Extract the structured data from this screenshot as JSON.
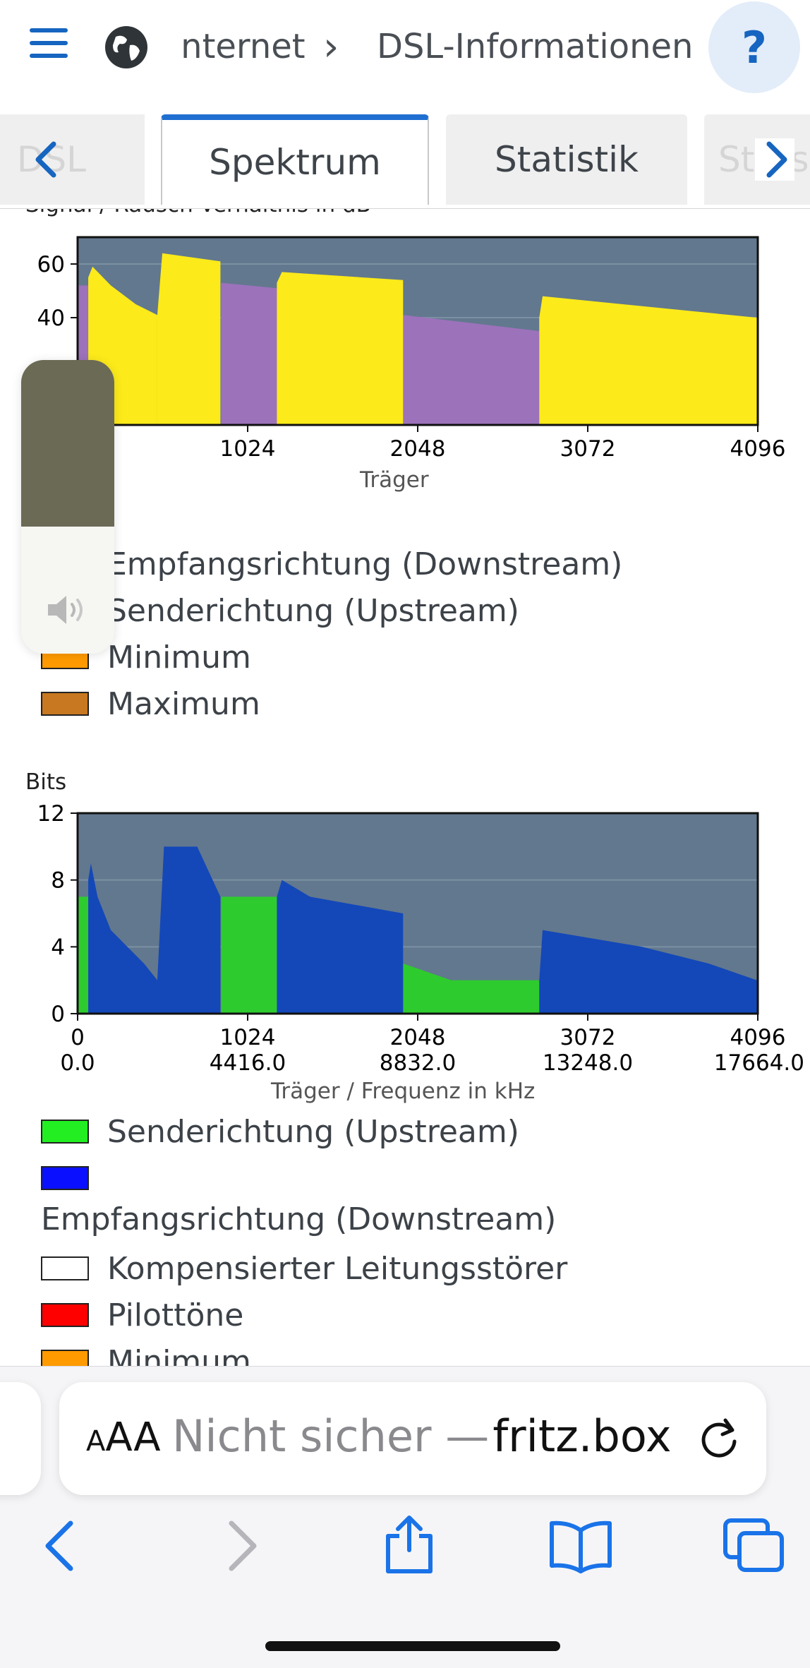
{
  "header": {
    "breadcrumb_parent": "Internet",
    "breadcrumb_separator": "›",
    "breadcrumb_current": "DSL-Informationen",
    "help_label": "?"
  },
  "tabs": {
    "items": [
      "DSL",
      "Spektrum",
      "Statistik",
      "Störsicherheit"
    ],
    "active": "Spektrum"
  },
  "chart1": {
    "title": "Signal / Rausch-Verhältnis in dB",
    "xlabel": "Träger"
  },
  "legend1": [
    {
      "label": "Empfangsrichtung (Downstream)",
      "color": "#ffee00"
    },
    {
      "label": "Senderichtung (Upstream)",
      "color": "#a070c0"
    },
    {
      "label": "Minimum",
      "color": "#ff9a00"
    },
    {
      "label": "Maximum",
      "color": "#c87820"
    }
  ],
  "chart2": {
    "title": "Bits",
    "xlabel": "Träger / Frequenz in kHz",
    "freq_ticks": [
      "0.0",
      "4416.0",
      "8832.0",
      "13248.0",
      "17664.0"
    ]
  },
  "legend2": [
    {
      "label": "Senderichtung (Upstream)",
      "color": "#22ee22"
    },
    {
      "label": "",
      "color": "#0a10ff"
    },
    {
      "label": "Empfangsrichtung (Downstream)",
      "color": ""
    },
    {
      "label": "Kompensierter Leitungsstörer",
      "color": "#ffffff"
    },
    {
      "label": "Pilottöne",
      "color": "#ff0000"
    },
    {
      "label": "Minimum",
      "color": "#ff9a00"
    }
  ],
  "safari": {
    "text_size_label": "AA",
    "not_secure_label": "Nicht sicher —",
    "domain": "fritz.box"
  },
  "chart_data": [
    {
      "type": "area",
      "title": "Signal / Rausch-Verhältnis in dB",
      "xlabel": "Träger",
      "ylabel": "",
      "xlim": [
        0,
        4096
      ],
      "ylim": [
        0,
        70
      ],
      "xticks": [
        1024,
        2048,
        3072,
        4096
      ],
      "yticks": [
        40,
        60
      ],
      "grid": true,
      "series": [
        {
          "name": "Senderichtung (Upstream)",
          "color": "#9c72bb",
          "segments": [
            {
              "x": [
                0,
                64
              ],
              "y": [
                52,
                52
              ]
            },
            {
              "x": [
                864,
                1200
              ],
              "y": [
                53,
                51
              ]
            },
            {
              "x": [
                1960,
                2780
              ],
              "y": [
                41,
                35
              ]
            }
          ]
        },
        {
          "name": "Empfangsrichtung (Downstream)",
          "color": "#fcea1a",
          "segments": [
            {
              "x": [
                64,
                90,
                200,
                350,
                480
              ],
              "y": [
                55,
                59,
                52,
                45,
                41
              ]
            },
            {
              "x": [
                480,
                510,
                860
              ],
              "y": [
                41,
                64,
                61
              ]
            },
            {
              "x": [
                1200,
                1230,
                1960
              ],
              "y": [
                53,
                57,
                54
              ]
            },
            {
              "x": [
                2780,
                2800,
                4090
              ],
              "y": [
                40,
                48,
                40
              ]
            }
          ]
        }
      ]
    },
    {
      "type": "area",
      "title": "Bits",
      "xlabel": "Träger / Frequenz in kHz",
      "ylabel": "",
      "xlim": [
        0,
        4096
      ],
      "ylim": [
        0,
        12
      ],
      "xticks": [
        0,
        1024,
        2048,
        3072,
        4096
      ],
      "yticks": [
        0,
        4,
        8,
        12
      ],
      "grid": true,
      "series": [
        {
          "name": "Senderichtung (Upstream)",
          "color": "#2ecb2e",
          "segments": [
            {
              "x": [
                0,
                64
              ],
              "y": [
                7,
                7
              ]
            },
            {
              "x": [
                864,
                1200
              ],
              "y": [
                7,
                7
              ]
            },
            {
              "x": [
                1960,
                2250,
                2780
              ],
              "y": [
                3,
                2,
                2
              ]
            }
          ]
        },
        {
          "name": "",
          "color": "#1448b8",
          "segments": [
            {
              "x": [
                64,
                80,
                120,
                200,
                300,
                400,
                480
              ],
              "y": [
                8,
                9,
                7,
                5,
                4,
                3,
                2
              ]
            },
            {
              "x": [
                480,
                520,
                720,
                860
              ],
              "y": [
                2,
                10,
                10,
                7
              ]
            },
            {
              "x": [
                1200,
                1230,
                1400,
                1960
              ],
              "y": [
                7,
                8,
                7,
                6
              ]
            },
            {
              "x": [
                2780,
                2800,
                3400,
                3800,
                4090
              ],
              "y": [
                2,
                5,
                4,
                3,
                2
              ]
            }
          ]
        }
      ]
    }
  ]
}
